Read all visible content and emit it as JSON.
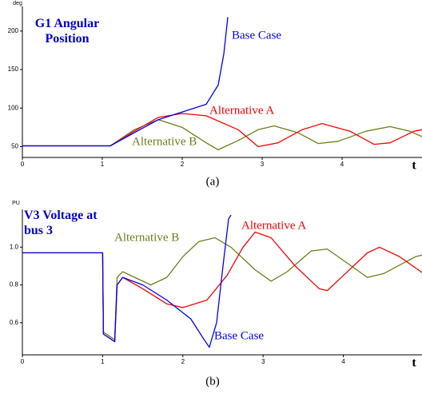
{
  "chart_data": [
    {
      "type": "line",
      "title": "G1 Angular Position",
      "y_unit": "deg",
      "x_label": "t",
      "caption": "(a)",
      "xlim": [
        0,
        5
      ],
      "xticks": [
        0,
        1,
        2,
        3,
        4
      ],
      "ylim": [
        36,
        232
      ],
      "yticks": [
        50,
        100,
        150,
        200
      ],
      "series": [
        {
          "name": "Base Case",
          "color": "#0000ff",
          "x": [
            0,
            1.1,
            1.4,
            1.7,
            2.0,
            2.3,
            2.45,
            2.52,
            2.57
          ],
          "values": [
            51,
            51,
            68,
            85,
            95,
            105,
            130,
            170,
            218
          ]
        },
        {
          "name": "Alternative A",
          "color": "#ff0000",
          "x": [
            0,
            1.1,
            1.4,
            1.7,
            2.0,
            2.3,
            2.7,
            2.95,
            3.2,
            3.5,
            3.75,
            4.1,
            4.4,
            4.6,
            4.9,
            5.0
          ],
          "values": [
            51,
            51,
            70,
            88,
            93,
            90,
            72,
            50,
            55,
            72,
            80,
            70,
            53,
            55,
            70,
            72
          ]
        },
        {
          "name": "Alternative B",
          "color": "#6b7f1a",
          "x": [
            0,
            1.1,
            1.4,
            1.7,
            2.0,
            2.3,
            2.45,
            2.7,
            2.95,
            3.15,
            3.45,
            3.7,
            3.95,
            4.3,
            4.6,
            4.85,
            5.0
          ],
          "values": [
            51,
            51,
            72,
            85,
            75,
            55,
            46,
            58,
            72,
            77,
            68,
            54,
            57,
            70,
            76,
            70,
            63
          ]
        }
      ]
    },
    {
      "type": "line",
      "title": "V3 Voltage at bus 3",
      "y_unit": "PU",
      "x_label": "t",
      "caption": "(b)",
      "xlim": [
        0,
        5
      ],
      "xticks": [
        0,
        1,
        2,
        3,
        4
      ],
      "ylim": [
        0.43,
        1.2
      ],
      "yticks": [
        {
          "value": 1.0,
          "label": "1.0"
        },
        0.8,
        0.6
      ],
      "series": [
        {
          "name": "Base Case",
          "color": "#0000ff",
          "x": [
            0,
            1.0,
            1.01,
            1.15,
            1.18,
            1.25,
            1.5,
            1.8,
            2.1,
            2.25,
            2.33,
            2.42,
            2.5,
            2.57,
            2.6
          ],
          "values": [
            0.97,
            0.97,
            0.54,
            0.5,
            0.8,
            0.84,
            0.8,
            0.72,
            0.62,
            0.52,
            0.47,
            0.6,
            0.9,
            1.15,
            1.17
          ]
        },
        {
          "name": "Alternative A",
          "color": "#ff0000",
          "x": [
            0,
            1.0,
            1.01,
            1.15,
            1.18,
            1.25,
            1.5,
            1.8,
            2.0,
            2.3,
            2.55,
            2.75,
            2.9,
            3.1,
            3.4,
            3.7,
            3.8,
            4.0,
            4.3,
            4.45,
            4.7,
            5.0
          ],
          "values": [
            0.97,
            0.97,
            0.54,
            0.5,
            0.8,
            0.84,
            0.78,
            0.7,
            0.68,
            0.72,
            0.85,
            1.0,
            1.08,
            1.05,
            0.9,
            0.78,
            0.77,
            0.85,
            0.97,
            1.0,
            0.95,
            0.86
          ]
        },
        {
          "name": "Alternative B",
          "color": "#6b7f1a",
          "x": [
            0,
            1.0,
            1.01,
            1.15,
            1.18,
            1.25,
            1.4,
            1.6,
            1.8,
            2.0,
            2.2,
            2.4,
            2.6,
            2.9,
            3.1,
            3.3,
            3.6,
            3.8,
            4.1,
            4.3,
            4.5,
            4.9,
            5.0
          ],
          "values": [
            0.97,
            0.97,
            0.55,
            0.51,
            0.84,
            0.87,
            0.84,
            0.8,
            0.84,
            0.95,
            1.03,
            1.05,
            1.0,
            0.88,
            0.82,
            0.87,
            0.98,
            0.99,
            0.9,
            0.84,
            0.86,
            0.95,
            0.96
          ]
        }
      ]
    }
  ]
}
